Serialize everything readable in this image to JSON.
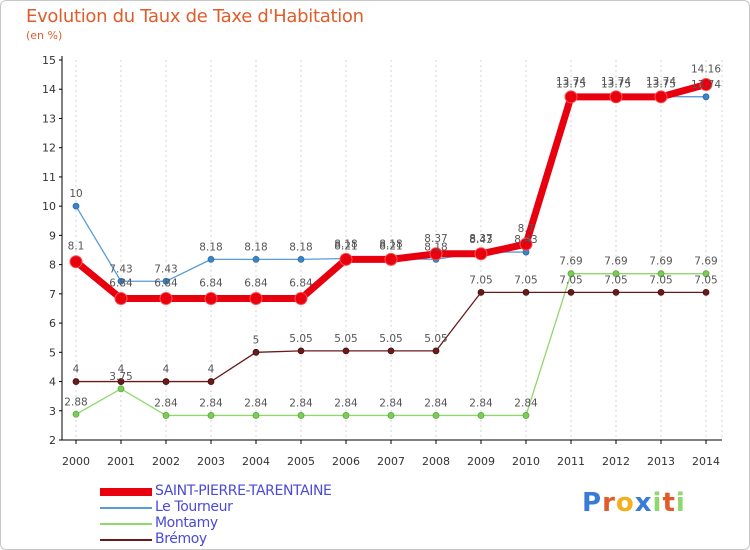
{
  "title": "Evolution du Taux de Taxe d'Habitation",
  "unit": "(en %)",
  "logo_text": "Proxiti",
  "chart_data": {
    "type": "line",
    "title": "Evolution du Taux de Taxe d'Habitation",
    "ylabel": "(en %)",
    "xlabel": "",
    "ylim": [
      2,
      15
    ],
    "yticks": [
      "2",
      "3",
      "4",
      "5",
      "6",
      "7",
      "8",
      "9",
      "10",
      "11",
      "12",
      "13",
      "14",
      "15"
    ],
    "x": [
      "2000",
      "2001",
      "2002",
      "2003",
      "2004",
      "2005",
      "2006",
      "2007",
      "2008",
      "2009",
      "2010",
      "2011",
      "2012",
      "2013",
      "2014"
    ],
    "grid": "vertical dashed",
    "legend": "bottom-left",
    "series": [
      {
        "name": "SAINT-PIERRE-TARENTAINE",
        "color": "#e8000f",
        "values": [
          8.1,
          6.84,
          6.84,
          6.84,
          6.84,
          6.84,
          8.18,
          8.18,
          8.37,
          8.37,
          8.7,
          13.74,
          13.74,
          13.74,
          14.16
        ],
        "labels": [
          "8.1",
          "6.84",
          "6.84",
          "6.84",
          "6.84",
          "6.84",
          "8.18",
          "8.18",
          "8.37",
          "8.37",
          "8.7",
          "13.74",
          "13.74",
          "13.74",
          "14.16"
        ]
      },
      {
        "name": "Le Tourneur",
        "color": "#5a9bd5",
        "values": [
          10,
          7.43,
          7.43,
          8.18,
          8.18,
          8.18,
          8.21,
          8.21,
          8.18,
          8.43,
          8.43,
          13.75,
          13.75,
          13.75,
          13.74
        ],
        "labels": [
          "10",
          "7.43",
          "7.43",
          "8.18",
          "8.18",
          "8.18",
          "8.21",
          "8.21",
          "8.18",
          "8.43",
          "8.43",
          "13.75",
          "13.75",
          "13.75",
          "13.74"
        ]
      },
      {
        "name": "Montamy",
        "color": "#8ed86e",
        "values": [
          2.88,
          3.75,
          2.84,
          2.84,
          2.84,
          2.84,
          2.84,
          2.84,
          2.84,
          2.84,
          2.84,
          7.69,
          7.69,
          7.69,
          7.69
        ],
        "labels": [
          "2.88",
          "3.75",
          "2.84",
          "2.84",
          "2.84",
          "2.84",
          "2.84",
          "2.84",
          "2.84",
          "2.84",
          "2.84",
          "7.69",
          "7.69",
          "7.69",
          "7.69"
        ]
      },
      {
        "name": "Brémoy",
        "color": "#6b1a1a",
        "values": [
          4,
          4,
          4,
          4,
          5,
          5.05,
          5.05,
          5.05,
          5.05,
          7.05,
          7.05,
          7.05,
          7.05,
          7.05,
          7.05
        ],
        "labels": [
          "4",
          "4",
          "4",
          "4",
          "5",
          "5.05",
          "5.05",
          "5.05",
          "5.05",
          "7.05",
          "7.05",
          "7.05",
          "7.05",
          "7.05",
          "7.05"
        ]
      }
    ]
  }
}
